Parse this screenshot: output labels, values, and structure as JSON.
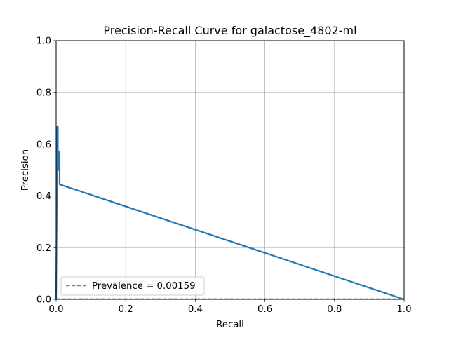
{
  "chart_data": {
    "type": "line",
    "title": "Precision-Recall Curve for galactose_4802-ml",
    "xlabel": "Recall",
    "ylabel": "Precision",
    "xlim": [
      0.0,
      1.0
    ],
    "ylim": [
      0.0,
      1.0
    ],
    "xticks": [
      "0.0",
      "0.2",
      "0.4",
      "0.6",
      "0.8",
      "1.0"
    ],
    "yticks": [
      "0.0",
      "0.2",
      "0.4",
      "0.6",
      "0.8",
      "1.0"
    ],
    "grid": true,
    "legend_position": "lower-left",
    "series": [
      {
        "color": "#1f77b4",
        "style": "solid",
        "points": [
          [
            0.0,
            0.0
          ],
          [
            0.0025,
            0.5
          ],
          [
            0.0025,
            0.6667
          ],
          [
            0.005,
            0.6667
          ],
          [
            0.005,
            0.5
          ],
          [
            0.0075,
            0.5
          ],
          [
            0.0075,
            0.5714
          ],
          [
            0.01,
            0.5714
          ],
          [
            0.01,
            0.4444
          ],
          [
            1.0,
            0.0
          ]
        ]
      },
      {
        "name": "Prevalence = 0.00159",
        "color": "#808080",
        "style": "dashed",
        "points": [
          [
            0.0,
            0.00159
          ],
          [
            1.0,
            0.00159
          ]
        ]
      }
    ]
  }
}
